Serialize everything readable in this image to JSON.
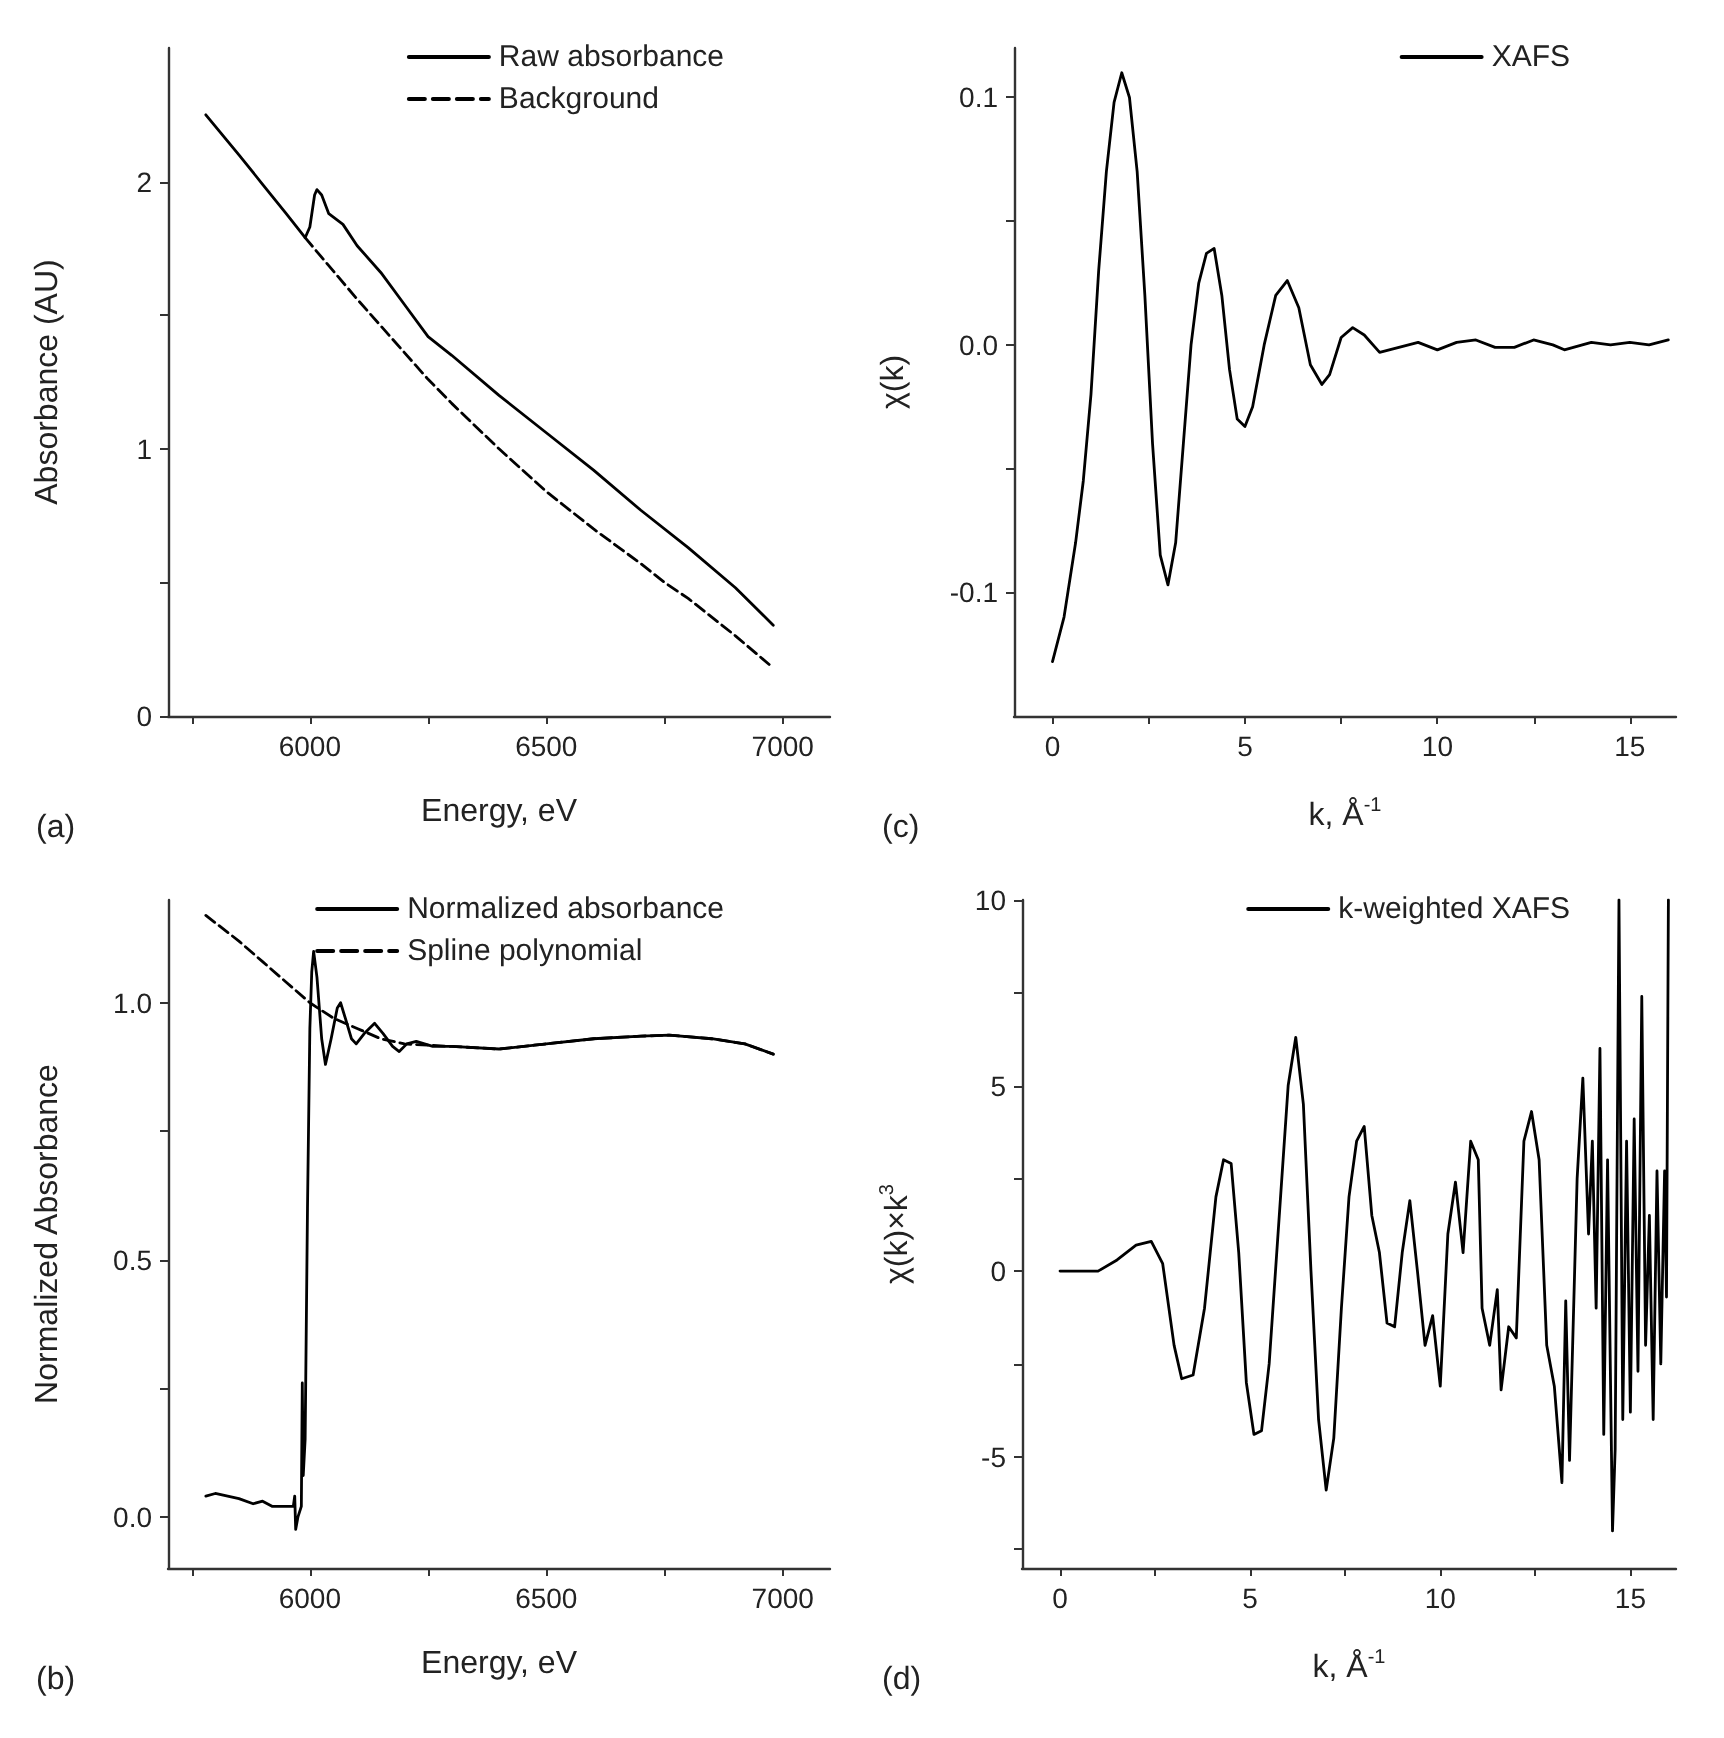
{
  "chart_data": [
    {
      "type": "line",
      "xlabel": "Energy, eV",
      "ylabel": "Absorbance (AU)",
      "annotations": [
        "(a)"
      ],
      "legend": "top right",
      "grid": false,
      "marker": "none",
      "xlim": [
        5700,
        7100
      ],
      "xticks": [
        {
          "value": 5750,
          "label": null
        },
        6000,
        {
          "value": 6250,
          "label": null
        },
        6500,
        {
          "value": 6750,
          "label": null
        },
        7000
      ],
      "ylim": [
        0,
        2.5
      ],
      "yticks": [
        0,
        {
          "value": 0.5,
          "label": null
        },
        1,
        {
          "value": 1.5,
          "label": null
        },
        2
      ],
      "series": [
        {
          "name": "Raw absorbance",
          "color": "#000000",
          "line_style": "solid",
          "x": [
            5780,
            5850,
            5900,
            5950,
            5990,
            6000,
            6010,
            6015,
            6025,
            6040,
            6070,
            6100,
            6150,
            6200,
            6250,
            6300,
            6400,
            6500,
            6600,
            6700,
            6800,
            6900,
            6980
          ],
          "values": [
            2.25,
            2.1,
            1.99,
            1.88,
            1.79,
            1.83,
            1.95,
            1.97,
            1.95,
            1.88,
            1.84,
            1.76,
            1.66,
            1.54,
            1.42,
            1.35,
            1.2,
            1.06,
            0.92,
            0.77,
            0.63,
            0.48,
            0.34
          ]
        },
        {
          "name": "Background",
          "color": "#000000",
          "line_style": "dashed",
          "x": [
            5990,
            6100,
            6200,
            6250,
            6300,
            6400,
            6500,
            6600,
            6700,
            6750,
            6800,
            6900,
            6980
          ],
          "values": [
            1.79,
            1.56,
            1.36,
            1.26,
            1.17,
            1.0,
            0.84,
            0.7,
            0.57,
            0.5,
            0.44,
            0.3,
            0.18
          ]
        }
      ]
    },
    {
      "type": "line",
      "xlabel": "k, Å$^{-1}$",
      "ylabel": "χ(k)",
      "annotations": [
        "(c)"
      ],
      "legend": "top right",
      "grid": false,
      "marker": "none",
      "xlim": [
        -1,
        16.2
      ],
      "xticks": [
        0,
        {
          "value": 2.5,
          "label": null
        },
        5,
        {
          "value": 7.5,
          "label": null
        },
        10,
        {
          "value": 12.5,
          "label": null
        },
        15
      ],
      "ylim": [
        -0.15,
        0.12
      ],
      "yticks": [
        {
          "value": -0.1,
          "label": "-0.1"
        },
        {
          "value": -0.05,
          "label": null
        },
        {
          "value": 0,
          "label": "0.0"
        },
        {
          "value": 0.05,
          "label": null
        },
        {
          "value": 0.1,
          "label": "0.1"
        }
      ],
      "series": [
        {
          "name": "XAFS",
          "color": "#000000",
          "line_style": "solid",
          "x": [
            0,
            0.3,
            0.6,
            0.8,
            1.0,
            1.2,
            1.4,
            1.6,
            1.8,
            2.0,
            2.2,
            2.4,
            2.6,
            2.8,
            3.0,
            3.2,
            3.4,
            3.6,
            3.8,
            4.0,
            4.2,
            4.4,
            4.6,
            4.8,
            5.0,
            5.2,
            5.5,
            5.8,
            6.1,
            6.4,
            6.7,
            7.0,
            7.2,
            7.5,
            7.8,
            8.1,
            8.5,
            9.0,
            9.5,
            10.0,
            10.5,
            11.0,
            11.5,
            12.0,
            12.5,
            13.0,
            13.3,
            14.0,
            14.5,
            15.0,
            15.5,
            16.0
          ],
          "values": [
            -0.128,
            -0.11,
            -0.08,
            -0.055,
            -0.02,
            0.03,
            0.07,
            0.098,
            0.11,
            0.1,
            0.07,
            0.02,
            -0.04,
            -0.085,
            -0.097,
            -0.08,
            -0.04,
            0.0,
            0.025,
            0.037,
            0.039,
            0.02,
            -0.01,
            -0.03,
            -0.033,
            -0.025,
            0.0,
            0.02,
            0.026,
            0.015,
            -0.008,
            -0.016,
            -0.012,
            0.003,
            0.007,
            0.004,
            -0.003,
            -0.001,
            0.001,
            -0.002,
            0.001,
            0.002,
            -0.001,
            -0.001,
            0.002,
            0.0,
            -0.002,
            0.001,
            0.0,
            0.001,
            0.0,
            0.002
          ]
        }
      ]
    },
    {
      "type": "line",
      "xlabel": "Energy, eV",
      "ylabel": "Normalized Absorbance",
      "annotations": [
        "(b)"
      ],
      "legend": "top right",
      "grid": false,
      "marker": "none",
      "xlim": [
        5700,
        7100
      ],
      "xticks": [
        {
          "value": 5750,
          "label": null
        },
        6000,
        {
          "value": 6250,
          "label": null
        },
        6500,
        {
          "value": 6750,
          "label": null
        },
        7000
      ],
      "ylim": [
        -0.1,
        1.2
      ],
      "yticks": [
        {
          "value": 0,
          "label": "0.0"
        },
        {
          "value": 0.25,
          "label": null
        },
        0.5,
        {
          "value": 0.75,
          "label": null
        },
        {
          "value": 1,
          "label": "1.0"
        }
      ],
      "series": [
        {
          "name": "Normalized absorbance",
          "color": "#000000",
          "line_style": "solid",
          "x": [
            5780,
            5800,
            5850,
            5880,
            5900,
            5920,
            5950,
            5965,
            5968,
            5970,
            5975,
            5982,
            5984,
            5986,
            5990,
            5995,
            6000,
            6004,
            6008,
            6015,
            6025,
            6033,
            6045,
            6058,
            6065,
            6075,
            6088,
            6098,
            6115,
            6137,
            6155,
            6175,
            6189,
            6205,
            6225,
            6260,
            6300,
            6400,
            6500,
            6600,
            6700,
            6760,
            6850,
            6920,
            6980
          ],
          "values": [
            0.04,
            0.045,
            0.035,
            0.025,
            0.03,
            0.02,
            0.02,
            0.02,
            0.04,
            -0.025,
            0.0,
            0.02,
            0.26,
            0.08,
            0.15,
            0.6,
            0.95,
            1.06,
            1.1,
            1.05,
            0.93,
            0.88,
            0.93,
            0.99,
            1.0,
            0.97,
            0.93,
            0.92,
            0.94,
            0.96,
            0.94,
            0.915,
            0.905,
            0.92,
            0.925,
            0.915,
            0.915,
            0.91,
            0.92,
            0.93,
            0.935,
            0.937,
            0.93,
            0.92,
            0.9
          ]
        },
        {
          "name": "Spline polynomial",
          "color": "#000000",
          "line_style": "dashed",
          "x": [
            5780,
            5850,
            5900,
            5950,
            6000,
            6050,
            6100,
            6150,
            6200,
            6300,
            6400,
            6500,
            6600,
            6700,
            6760,
            6850,
            6920,
            6980
          ],
          "values": [
            1.17,
            1.12,
            1.08,
            1.04,
            1.0,
            0.97,
            0.95,
            0.93,
            0.92,
            0.915,
            0.91,
            0.92,
            0.93,
            0.935,
            0.937,
            0.93,
            0.92,
            0.9
          ]
        }
      ]
    },
    {
      "type": "line",
      "xlabel": "k, Å$^{-1}$",
      "ylabel": "χ(k)×k$^{3}$",
      "annotations": [
        "(d)"
      ],
      "legend": "top right",
      "grid": false,
      "marker": "none",
      "xlim": [
        -1,
        16.2
      ],
      "xticks": [
        0,
        {
          "value": 2.5,
          "label": null
        },
        5,
        {
          "value": 7.5,
          "label": null
        },
        10,
        {
          "value": 12.5,
          "label": null
        },
        15
      ],
      "ylim": [
        -8,
        10
      ],
      "yticks": [
        {
          "value": -7.5,
          "label": null
        },
        -5,
        {
          "value": -2.5,
          "label": null
        },
        0,
        {
          "value": 2.5,
          "label": null
        },
        5,
        {
          "value": 7.5,
          "label": null
        },
        10
      ],
      "series": [
        {
          "name": "k-weighted XAFS",
          "color": "#000000",
          "line_style": "solid",
          "x": [
            0,
            0.5,
            1.0,
            1.5,
            2.0,
            2.4,
            2.7,
            3.0,
            3.2,
            3.5,
            3.8,
            4.1,
            4.3,
            4.5,
            4.7,
            4.9,
            5.1,
            5.3,
            5.5,
            5.8,
            6.0,
            6.2,
            6.4,
            6.6,
            6.8,
            7.0,
            7.2,
            7.4,
            7.6,
            7.8,
            8.0,
            8.2,
            8.4,
            8.6,
            8.8,
            9.0,
            9.2,
            9.4,
            9.6,
            9.8,
            10.0,
            10.2,
            10.4,
            10.6,
            10.8,
            11.0,
            11.1,
            11.3,
            11.5,
            11.6,
            11.8,
            12.0,
            12.2,
            12.4,
            12.6,
            12.8,
            13.0,
            13.2,
            13.3,
            13.4,
            13.6,
            13.75,
            13.9,
            14.0,
            14.1,
            14.2,
            14.3,
            14.4,
            14.53,
            14.6,
            14.7,
            14.8,
            14.9,
            15.0,
            15.1,
            15.2,
            15.3,
            15.4,
            15.5,
            15.6,
            15.7,
            15.8,
            15.9,
            15.95,
            16.0
          ],
          "values": [
            0,
            0,
            0,
            0.3,
            0.7,
            0.8,
            0.2,
            -2.0,
            -2.9,
            -2.8,
            -1.0,
            2.0,
            3.0,
            2.9,
            0.5,
            -3.0,
            -4.4,
            -4.3,
            -2.5,
            2.0,
            5.0,
            6.3,
            4.5,
            0.0,
            -4.0,
            -5.9,
            -4.5,
            -1.0,
            2.0,
            3.5,
            3.9,
            1.5,
            0.5,
            -1.4,
            -1.5,
            0.5,
            1.9,
            0.0,
            -2.0,
            -1.2,
            -3.1,
            1.0,
            2.4,
            0.5,
            3.5,
            3.0,
            -1.0,
            -2.0,
            -0.5,
            -3.2,
            -1.5,
            -1.8,
            3.5,
            4.3,
            3.0,
            -2.0,
            -3.1,
            -5.7,
            -0.8,
            -5.1,
            2.5,
            5.2,
            1.0,
            3.5,
            -1.0,
            6.0,
            -4.4,
            3.0,
            -7.0,
            -4.8,
            10.0,
            -4.0,
            3.5,
            -3.8,
            4.1,
            -2.7,
            7.4,
            -2.0,
            1.5,
            -4.0,
            2.7,
            -2.5,
            2.7,
            -0.7,
            10.0
          ]
        }
      ]
    }
  ]
}
